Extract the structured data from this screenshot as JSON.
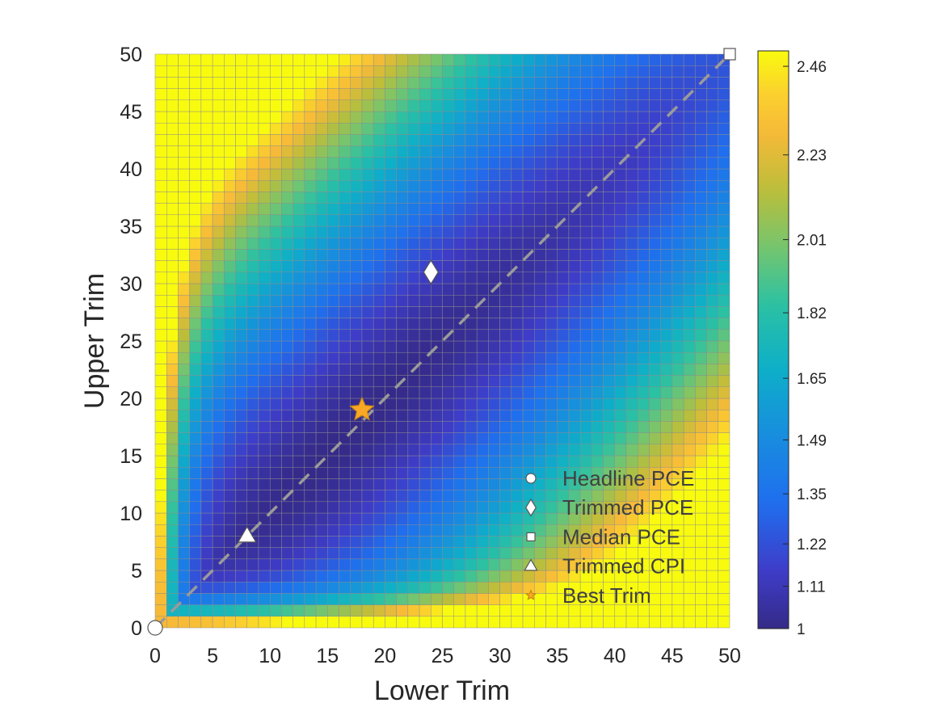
{
  "chart_data": {
    "type": "heatmap",
    "title": "",
    "xlabel": "Lower Trim",
    "ylabel": "Upper Trim",
    "xlim": [
      0,
      50
    ],
    "ylim": [
      0,
      50
    ],
    "x_ticks": [
      "0",
      "5",
      "10",
      "15",
      "20",
      "25",
      "30",
      "35",
      "40",
      "45",
      "50"
    ],
    "y_ticks": [
      "0",
      "5",
      "10",
      "15",
      "20",
      "25",
      "30",
      "35",
      "40",
      "45",
      "50"
    ],
    "grid_step": 1,
    "colorbar": {
      "min": 1,
      "max": 2.5,
      "colormap": "parula",
      "ticks": [
        "2.46",
        "2.23",
        "2.01",
        "1.82",
        "1.65",
        "1.49",
        "1.35",
        "1.22",
        "1.11",
        "1"
      ],
      "tick_values": [
        2.46,
        2.23,
        2.01,
        1.82,
        1.65,
        1.49,
        1.35,
        1.22,
        1.11,
        1.0
      ]
    },
    "reference_line": {
      "style": "dashed",
      "color": "#9a9a9a",
      "from": [
        0,
        0
      ],
      "to": [
        50,
        50
      ]
    },
    "markers": [
      {
        "name": "Headline PCE",
        "shape": "circle",
        "x": 0,
        "y": 0,
        "color": "#ffffff"
      },
      {
        "name": "Trimmed PCE",
        "shape": "diamond",
        "x": 24,
        "y": 31,
        "color": "#ffffff"
      },
      {
        "name": "Median PCE",
        "shape": "square",
        "x": 50,
        "y": 50,
        "color": "#ffffff"
      },
      {
        "name": "Trimmed CPI",
        "shape": "triangle",
        "x": 8,
        "y": 8,
        "color": "#ffffff"
      },
      {
        "name": "Best Trim",
        "shape": "star",
        "x": 18,
        "y": 19,
        "color": "#f9a825"
      }
    ],
    "legend": {
      "placement": "bottom-right",
      "entries": [
        "Headline PCE",
        "Trimmed PCE",
        "Median PCE",
        "Trimmed CPI",
        "Best Trim"
      ]
    }
  }
}
